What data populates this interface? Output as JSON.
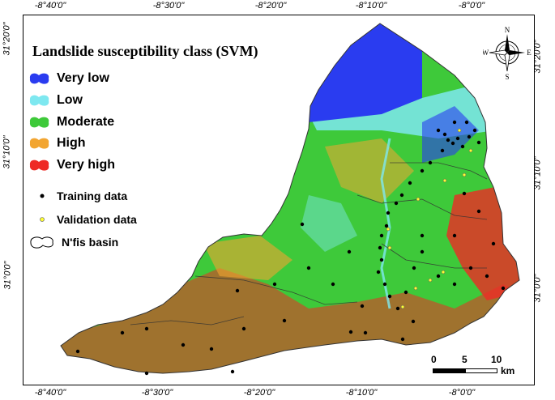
{
  "map": {
    "legend": {
      "title": "Landslide susceptibility class (SVM)",
      "classes": [
        {
          "label": "Very low",
          "color": "#2a3cf0"
        },
        {
          "label": "Low",
          "color": "#7ee8f0"
        },
        {
          "label": "Moderate",
          "color": "#3ec93a"
        },
        {
          "label": "High",
          "color": "#f2a531"
        },
        {
          "label": "Very high",
          "color": "#ee2a25"
        }
      ],
      "points": [
        {
          "label": "Training data",
          "color": "#000000"
        },
        {
          "label": "Validation data",
          "color": "#ffff33"
        }
      ],
      "boundary_label": "N'fis basin"
    },
    "axes": {
      "top_ticks": [
        "-8°40'0\"",
        "-8°30'0\"",
        "-8°20'0\"",
        "-8°10'0\"",
        "-8°0'0\""
      ],
      "bottom_ticks": [
        "-8°40'0\"",
        "-8°30'0\"",
        "-8°20'0\"",
        "-8°10'0\"",
        "-8°0'0\""
      ],
      "left_ticks": [
        "31°20'0\"",
        "31°10'0\"",
        "31°0'0\""
      ],
      "right_ticks": [
        "31°20'0\"",
        "31°10'0\"",
        "31°0'0\""
      ]
    },
    "compass": {
      "n": "N",
      "s": "S",
      "e": "E",
      "w": "W"
    },
    "scale": {
      "labels": [
        "0",
        "5",
        "10"
      ],
      "unit": "km"
    }
  }
}
